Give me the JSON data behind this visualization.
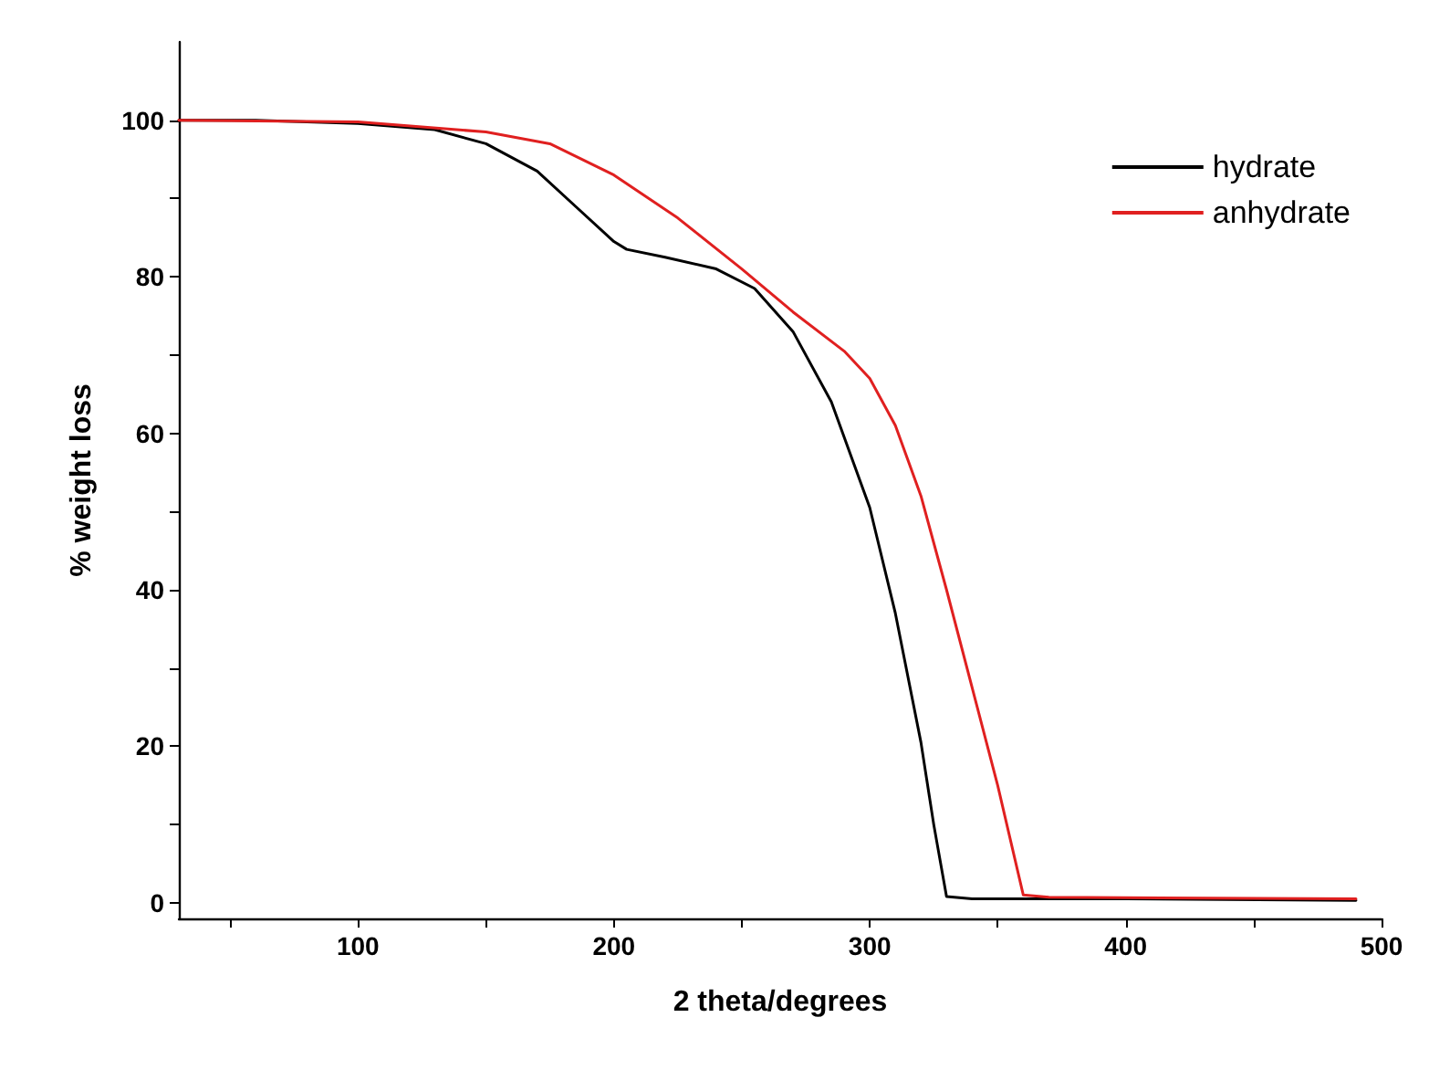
{
  "chart_data": {
    "type": "line",
    "xlabel": "2 theta/degrees",
    "ylabel": "% weight loss",
    "xlim": [
      30,
      500
    ],
    "xticks": [
      {
        "value": 50,
        "label": null
      },
      100,
      {
        "value": 150,
        "label": null
      },
      200,
      {
        "value": 250,
        "label": null
      },
      300,
      {
        "value": 350,
        "label": null
      },
      400,
      {
        "value": 450,
        "label": null
      },
      500
    ],
    "ylim": [
      -2,
      110
    ],
    "yticks": [
      0,
      {
        "value": 10,
        "label": null
      },
      20,
      {
        "value": 30,
        "label": null
      },
      40,
      {
        "value": 50,
        "label": null
      },
      60,
      {
        "value": 70,
        "label": null
      },
      80,
      {
        "value": 90,
        "label": null
      },
      100
    ],
    "legend": "top right",
    "grid": false,
    "marker": "none",
    "line_style": "solid",
    "series": [
      {
        "name": "hydrate",
        "color": "#000000",
        "x": [
          30,
          60,
          100,
          130,
          150,
          170,
          185,
          200,
          205,
          220,
          240,
          255,
          270,
          285,
          300,
          310,
          320,
          325,
          330,
          340,
          400,
          490
        ],
        "values": [
          100,
          100,
          99.6,
          98.8,
          97,
          93.5,
          89,
          84.5,
          83.5,
          82.5,
          81,
          78.5,
          73,
          64,
          50.5,
          37,
          20.5,
          10,
          0.8,
          0.5,
          0.5,
          0.3
        ]
      },
      {
        "name": "anhydrate",
        "color": "#e02020",
        "x": [
          30,
          100,
          150,
          175,
          200,
          225,
          250,
          270,
          290,
          300,
          310,
          320,
          330,
          340,
          350,
          360,
          370,
          490
        ],
        "values": [
          100,
          99.8,
          98.5,
          97,
          93,
          87.5,
          81,
          75.5,
          70.5,
          67,
          61,
          52,
          40,
          27.5,
          15,
          1,
          0.7,
          0.5
        ]
      }
    ]
  }
}
